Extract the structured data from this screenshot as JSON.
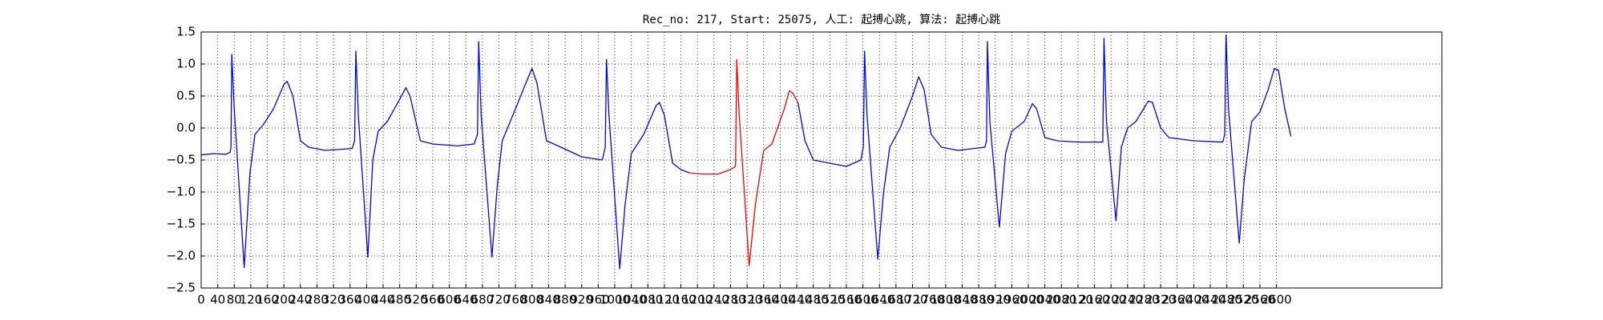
{
  "chart_data": {
    "type": "line",
    "title": "Rec_no: 217, Start: 25075, 人工: 起搏心跳, 算法: 起搏心跳",
    "x": [
      0,
      30,
      60,
      70,
      72,
      74,
      80,
      104,
      118,
      130,
      150,
      175,
      200,
      208,
      222,
      240,
      260,
      300,
      365,
      371,
      374,
      380,
      403,
      415,
      428,
      450,
      480,
      495,
      505,
      530,
      560,
      620,
      660,
      668,
      671,
      677,
      703,
      716,
      728,
      760,
      790,
      800,
      812,
      835,
      870,
      920,
      970,
      977,
      980,
      986,
      1012,
      1025,
      1040,
      1070,
      1100,
      1108,
      1120,
      1140,
      1160,
      1180,
      1210,
      1250,
      1280,
      1292,
      1295,
      1301,
      1325,
      1340,
      1360,
      1380,
      1410,
      1422,
      1430,
      1443,
      1460,
      1480,
      1520,
      1560,
      1595,
      1601,
      1604,
      1610,
      1636,
      1650,
      1665,
      1690,
      1720,
      1735,
      1748,
      1765,
      1790,
      1830,
      1895,
      1899,
      1901,
      1907,
      1930,
      1945,
      1960,
      1990,
      2010,
      2020,
      2040,
      2070,
      2120,
      2180,
      2183,
      2189,
      2212,
      2225,
      2240,
      2260,
      2290,
      2300,
      2320,
      2340,
      2400,
      2470,
      2475,
      2478,
      2484,
      2510,
      2522,
      2540,
      2560,
      2580,
      2595,
      2605,
      2620,
      2635
    ],
    "series": [
      {
        "color": "#0000ff",
        "values": [
          -0.42,
          -0.4,
          -0.41,
          -0.38,
          -0.3,
          1.15,
          0.3,
          -2.18,
          -0.7,
          -0.1,
          0.05,
          0.3,
          0.68,
          0.73,
          0.5,
          -0.2,
          -0.3,
          -0.35,
          -0.32,
          -0.2,
          1.2,
          0.2,
          -2.02,
          -0.5,
          -0.05,
          0.1,
          0.45,
          0.63,
          0.5,
          -0.2,
          -0.25,
          -0.28,
          -0.25,
          -0.1,
          1.35,
          0.2,
          -2.02,
          -0.9,
          -0.2,
          0.3,
          0.78,
          0.93,
          0.7,
          -0.2,
          -0.3,
          -0.45,
          -0.5,
          -0.3,
          1.07,
          0.2,
          -2.2,
          -1.2,
          -0.4,
          -0.1,
          0.35,
          0.4,
          0.2,
          -0.55,
          -0.65,
          -0.7,
          null,
          null,
          null,
          null,
          null,
          null,
          null,
          null,
          null,
          null,
          null,
          null,
          null,
          0.4,
          -0.2,
          -0.5,
          -0.55,
          -0.6,
          -0.5,
          -0.3,
          1.2,
          0.2,
          -2.05,
          -1.0,
          -0.3,
          0.0,
          0.5,
          0.8,
          0.6,
          -0.1,
          -0.3,
          -0.35,
          -0.3,
          -0.2,
          1.35,
          0.1,
          -1.55,
          -0.4,
          -0.05,
          0.1,
          0.38,
          0.3,
          -0.15,
          -0.2,
          -0.22,
          -0.22,
          1.4,
          0.1,
          -1.45,
          -0.3,
          0.0,
          0.1,
          0.42,
          0.4,
          0.0,
          -0.15,
          -0.2,
          -0.22,
          -0.1,
          1.45,
          0.3,
          -1.8,
          -0.8,
          0.1,
          0.25,
          0.6,
          0.93,
          0.9,
          0.3,
          -0.13
        ]
      },
      {
        "color": "#ff0000",
        "values": [
          null,
          null,
          null,
          null,
          null,
          null,
          null,
          null,
          null,
          null,
          null,
          null,
          null,
          null,
          null,
          null,
          null,
          null,
          null,
          null,
          null,
          null,
          null,
          null,
          null,
          null,
          null,
          null,
          null,
          null,
          null,
          null,
          null,
          null,
          null,
          null,
          null,
          null,
          null,
          null,
          null,
          null,
          null,
          null,
          null,
          null,
          null,
          null,
          null,
          null,
          null,
          null,
          null,
          null,
          null,
          null,
          null,
          null,
          null,
          -0.7,
          -0.72,
          -0.72,
          -0.65,
          -0.6,
          1.07,
          0.2,
          -2.15,
          -1.2,
          -0.35,
          -0.25,
          0.3,
          0.58,
          0.55,
          0.4,
          null,
          null,
          null,
          null,
          null,
          null,
          null,
          null,
          null,
          null,
          null,
          null,
          null,
          null,
          null,
          null,
          null,
          null,
          null,
          null,
          null,
          null,
          null,
          null,
          null,
          null,
          null,
          null,
          null,
          null,
          null,
          null,
          null,
          null,
          null,
          null,
          null,
          null,
          null,
          null,
          null,
          null,
          null,
          null,
          null,
          null,
          null,
          null,
          null,
          null,
          null,
          null,
          null,
          null,
          null,
          null
        ]
      }
    ],
    "xlim": [
      0,
      3000
    ],
    "xticks": [
      0,
      40,
      80,
      120,
      160,
      200,
      240,
      280,
      320,
      360,
      400,
      440,
      480,
      520,
      560,
      600,
      640,
      680,
      720,
      760,
      800,
      840,
      880,
      920,
      960,
      1000,
      1040,
      1080,
      1120,
      1160,
      1200,
      1240,
      1280,
      1320,
      1360,
      1400,
      1440,
      1480,
      1520,
      1560,
      1600,
      1640,
      1680,
      1720,
      1760,
      1800,
      1840,
      1880,
      1920,
      1960,
      2000,
      2040,
      2080,
      2120,
      2160,
      2200,
      2240,
      2280,
      2320,
      2360,
      2400,
      2440,
      2480,
      2520,
      2560,
      2600
    ],
    "ylim": [
      -2.5,
      1.5
    ],
    "yticks": [
      {
        "value": -2.5,
        "label": "−2.5"
      },
      {
        "value": -2.0,
        "label": "−2.0"
      },
      {
        "value": -1.5,
        "label": "−1.5"
      },
      {
        "value": -1.0,
        "label": "−1.0"
      },
      {
        "value": -0.5,
        "label": "−0.5"
      },
      {
        "value": 0.0,
        "label": "0.0"
      },
      0.5,
      {
        "value": 1.0,
        "label": "1.0"
      },
      1.5
    ],
    "grid": true
  }
}
